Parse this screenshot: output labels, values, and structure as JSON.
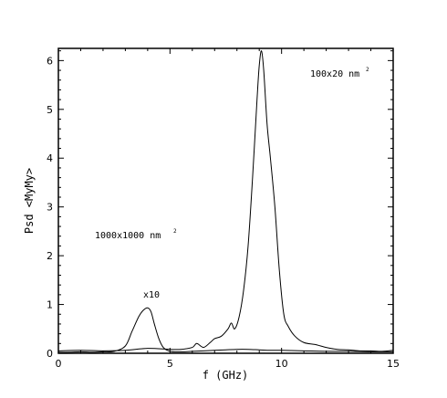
{
  "chart_data": {
    "type": "line",
    "xlabel": "f  (GHz)",
    "ylabel": "Psd  <MyMy>",
    "xlim": [
      0,
      15
    ],
    "ylim": [
      0,
      6.25
    ],
    "xticks": [
      0,
      5,
      10,
      15
    ],
    "yticks": [
      0,
      1,
      2,
      3,
      4,
      5,
      6
    ],
    "grid": false,
    "legend": "none",
    "annotations": [
      {
        "id": "label-100x20",
        "text": "100x20 nm",
        "sup": "2"
      },
      {
        "id": "label-1000x1000",
        "text": "1000x1000 nm",
        "sup": "2"
      },
      {
        "id": "label-x10",
        "text": "x10"
      }
    ],
    "series": [
      {
        "x": [
          0,
          0.5,
          1,
          1.5,
          2,
          2.5,
          3,
          3.3,
          3.6,
          3.8,
          4.0,
          4.15,
          4.3,
          4.5,
          4.7,
          5.0,
          5.5,
          6,
          6.5,
          7,
          7.5,
          8,
          8.5,
          9,
          9.5,
          10,
          11,
          12,
          13,
          14,
          15
        ],
        "y": [
          0.02,
          0.02,
          0.03,
          0.02,
          0.03,
          0.04,
          0.15,
          0.45,
          0.75,
          0.88,
          0.93,
          0.85,
          0.6,
          0.3,
          0.12,
          0.04,
          0.03,
          0.04,
          0.05,
          0.06,
          0.07,
          0.08,
          0.08,
          0.07,
          0.06,
          0.06,
          0.05,
          0.04,
          0.04,
          0.03,
          0.03
        ]
      },
      {
        "x": [
          0,
          1,
          2,
          3,
          4,
          5,
          5.5,
          6,
          6.2,
          6.5,
          6.8,
          7,
          7.3,
          7.6,
          7.75,
          7.9,
          8.1,
          8.3,
          8.5,
          8.7,
          8.9,
          9.0,
          9.1,
          9.2,
          9.35,
          9.5,
          9.7,
          9.9,
          10.1,
          10.3,
          10.6,
          11,
          11.5,
          12,
          12.5,
          13,
          13.5,
          14,
          14.5,
          15
        ],
        "y": [
          0.05,
          0.06,
          0.05,
          0.06,
          0.1,
          0.08,
          0.08,
          0.12,
          0.2,
          0.12,
          0.22,
          0.3,
          0.35,
          0.5,
          0.62,
          0.5,
          0.75,
          1.3,
          2.2,
          3.6,
          5.2,
          5.9,
          6.2,
          5.8,
          4.7,
          4.0,
          3.0,
          1.7,
          0.8,
          0.55,
          0.35,
          0.22,
          0.18,
          0.12,
          0.08,
          0.07,
          0.05,
          0.05,
          0.04,
          0.06
        ]
      }
    ]
  }
}
